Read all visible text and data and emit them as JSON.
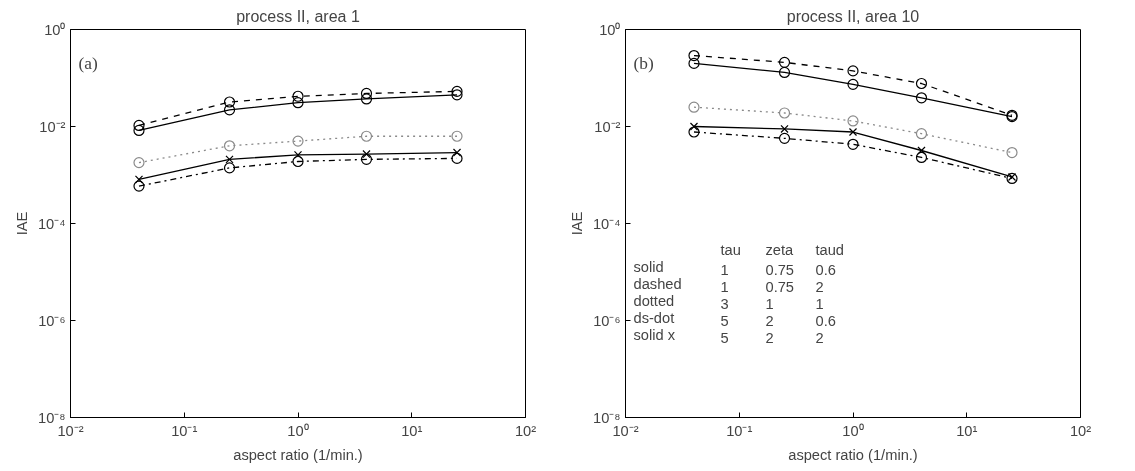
{
  "chart_data": [
    {
      "type": "line",
      "title": "process II, area 1",
      "xlabel": "aspect ratio (1/min.)",
      "ylabel": "IAE",
      "log": "xy",
      "grid": false,
      "marker": "circle",
      "x": [
        0.04,
        0.25,
        1,
        4,
        25
      ],
      "xlim": [
        0.01,
        100
      ],
      "ylim": [
        1e-08,
        1
      ],
      "xticks": [
        {
          "value": 0.01,
          "label": "10⁻²"
        },
        {
          "value": 0.1,
          "label": "10⁻¹"
        },
        {
          "value": 1,
          "label": "10⁰"
        },
        {
          "value": 10,
          "label": "10¹"
        },
        {
          "value": 100,
          "label": "10²"
        }
      ],
      "yticks": [
        {
          "value": 1e-08,
          "label": "10⁻⁸"
        },
        {
          "value": 1e-06,
          "label": "10⁻⁶"
        },
        {
          "value": 0.0001,
          "label": "10⁻⁴"
        },
        {
          "value": 0.01,
          "label": "10⁻²"
        },
        {
          "value": 1,
          "label": "10⁰"
        }
      ],
      "annotations": [
        "(a)"
      ],
      "series": [
        {
          "color": "#000000",
          "line_style": "solid",
          "values": [
            0.0083,
            0.022,
            0.031,
            0.037,
            0.045
          ]
        },
        {
          "color": "#000000",
          "line_style": "dashed",
          "values": [
            0.0105,
            0.032,
            0.042,
            0.048,
            0.053
          ]
        },
        {
          "color": "#8a8a8a",
          "line_style": "dotted",
          "values": [
            0.0018,
            0.004,
            0.005,
            0.0063,
            0.0063
          ]
        },
        {
          "color": "#000000",
          "line_style": "dashdot",
          "values": [
            0.00059,
            0.0014,
            0.0019,
            0.0021,
            0.0022
          ]
        },
        {
          "color": "#000000",
          "line_style": "solid",
          "marker": "cross",
          "values": [
            0.00081,
            0.0021,
            0.0026,
            0.0027,
            0.0029
          ]
        }
      ]
    },
    {
      "type": "line",
      "title": "process II, area 10",
      "xlabel": "aspect ratio (1/min.)",
      "ylabel": "IAE",
      "log": "xy",
      "grid": false,
      "marker": "circle",
      "x": [
        0.04,
        0.25,
        1,
        4,
        25
      ],
      "xlim": [
        0.01,
        100
      ],
      "ylim": [
        1e-08,
        1
      ],
      "xticks": [
        {
          "value": 0.01,
          "label": "10⁻²"
        },
        {
          "value": 0.1,
          "label": "10⁻¹"
        },
        {
          "value": 1,
          "label": "10⁰"
        },
        {
          "value": 10,
          "label": "10¹"
        },
        {
          "value": 100,
          "label": "10²"
        }
      ],
      "yticks": [
        {
          "value": 1e-08,
          "label": "10⁻⁸"
        },
        {
          "value": 1e-06,
          "label": "10⁻⁶"
        },
        {
          "value": 0.0001,
          "label": "10⁻⁴"
        },
        {
          "value": 0.01,
          "label": "10⁻²"
        },
        {
          "value": 1,
          "label": "10⁰"
        }
      ],
      "annotations": [
        "(b)",
        "  tau  zeta  taud",
        "solid  1  0.75  0.6",
        "dashed  1  0.75  2",
        "dotted  3  1  1",
        "ds-dot  5  2  0.6",
        "solid x  5  2  2"
      ],
      "series": [
        {
          "color": "#000000",
          "line_style": "solid",
          "values": [
            0.2,
            0.13,
            0.074,
            0.039,
            0.016
          ]
        },
        {
          "color": "#000000",
          "line_style": "dashed",
          "values": [
            0.29,
            0.21,
            0.14,
            0.077,
            0.017
          ]
        },
        {
          "color": "#8a8a8a",
          "line_style": "dotted",
          "values": [
            0.025,
            0.019,
            0.013,
            0.0071,
            0.0029
          ]
        },
        {
          "color": "#000000",
          "line_style": "dashdot",
          "values": [
            0.0077,
            0.0057,
            0.0043,
            0.0023,
            0.00085
          ]
        },
        {
          "color": "#000000",
          "line_style": "solid",
          "marker": "cross",
          "values": [
            0.01,
            0.0089,
            0.0077,
            0.0032,
            0.00091
          ]
        }
      ]
    }
  ]
}
